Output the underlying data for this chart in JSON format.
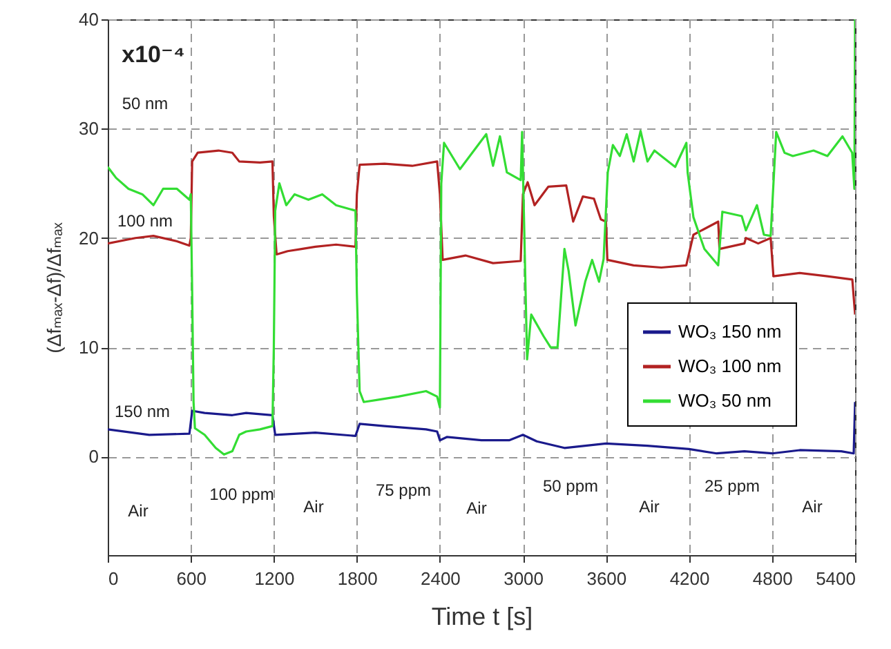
{
  "chart_data": {
    "type": "line",
    "xlabel": "Time t  [s]",
    "ylabel": "(Δfₘₐₓ-Δf)/Δfₘₐₓ",
    "xlim": [
      0,
      5400
    ],
    "xticks": [
      0,
      600,
      1200,
      1800,
      2400,
      3000,
      3600,
      4200,
      4800,
      5400
    ],
    "ylim": [
      -9,
      40
    ],
    "yticks": [
      0,
      10,
      20,
      30,
      40
    ],
    "grid": true,
    "legend": "bottom right",
    "line_style": "solid",
    "series": [
      {
        "name": "WO₃ 150 nm",
        "color": "#1a1a8c",
        "x": [
          0,
          300,
          590,
          610,
          700,
          900,
          1000,
          1190,
          1210,
          1500,
          1790,
          1820,
          2000,
          2300,
          2380,
          2400,
          2450,
          2700,
          2900,
          3000,
          3100,
          3300,
          3600,
          3900,
          4200,
          4400,
          4600,
          4800,
          5000,
          5300,
          5390,
          5400
        ],
        "values": [
          2.5,
          2.0,
          2.1,
          4.2,
          4.0,
          3.8,
          4.0,
          3.8,
          2.0,
          2.2,
          1.9,
          3.0,
          2.8,
          2.5,
          2.3,
          1.5,
          1.8,
          1.5,
          1.5,
          2.0,
          1.4,
          0.8,
          1.2,
          1.0,
          0.7,
          0.3,
          0.5,
          0.3,
          0.6,
          0.5,
          0.3,
          5.0
        ]
      },
      {
        "name": "WO₃ 100 nm",
        "color": "#b22222",
        "x": [
          0,
          200,
          330,
          500,
          590,
          600,
          610,
          650,
          800,
          900,
          950,
          1100,
          1190,
          1200,
          1220,
          1300,
          1400,
          1500,
          1650,
          1790,
          1800,
          1820,
          2000,
          2200,
          2380,
          2400,
          2420,
          2585,
          2784,
          2984,
          3000,
          3034,
          3084,
          3184,
          3313,
          3363,
          3433,
          3513,
          3563,
          3600,
          3610,
          3800,
          4000,
          4180,
          4232,
          4411,
          4420,
          4600,
          4611,
          4700,
          4790,
          4810,
          5000,
          5200,
          5380,
          5400
        ],
        "values": [
          19.5,
          20.0,
          20.2,
          19.7,
          19.3,
          20.0,
          27.0,
          27.8,
          28.0,
          27.8,
          27.0,
          26.9,
          27.0,
          22.0,
          18.5,
          18.8,
          19.0,
          19.2,
          19.4,
          19.2,
          24.0,
          26.7,
          26.8,
          26.6,
          27.0,
          24.0,
          18.0,
          18.4,
          17.7,
          17.9,
          24.0,
          25.1,
          23.0,
          24.7,
          24.8,
          21.5,
          23.8,
          23.6,
          21.7,
          21.5,
          18.0,
          17.5,
          17.3,
          17.5,
          20.3,
          21.5,
          19.0,
          19.5,
          20.0,
          19.5,
          20.0,
          16.5,
          16.8,
          16.5,
          16.2,
          13.0
        ]
      },
      {
        "name": "WO₃ 50 nm",
        "color": "#33dd33",
        "x": [
          0,
          60,
          150,
          250,
          330,
          400,
          500,
          590,
          600,
          610,
          620,
          630,
          700,
          780,
          840,
          900,
          950,
          1000,
          1100,
          1190,
          1200,
          1210,
          1240,
          1290,
          1350,
          1450,
          1550,
          1650,
          1790,
          1800,
          1820,
          1850,
          1950,
          2100,
          2300,
          2380,
          2400,
          2410,
          2430,
          2545,
          2735,
          2784,
          2834,
          2884,
          2984,
          2994,
          3030,
          3060,
          3150,
          3200,
          3250,
          3300,
          3330,
          3380,
          3450,
          3500,
          3550,
          3583,
          3613,
          3650,
          3700,
          3750,
          3800,
          3850,
          3900,
          3950,
          4000,
          4100,
          4181,
          4190,
          4232,
          4311,
          4411,
          4441,
          4581,
          4611,
          4691,
          4741,
          4790,
          4830,
          4890,
          4950,
          5100,
          5200,
          5309,
          5379,
          5395,
          5400
        ],
        "values": [
          26.5,
          25.5,
          24.5,
          24.0,
          23.0,
          24.5,
          24.5,
          23.5,
          24.0,
          15.0,
          5.0,
          2.6,
          2.0,
          0.8,
          0.2,
          0.5,
          2.0,
          2.3,
          2.5,
          2.8,
          10.0,
          22.5,
          25.0,
          23.0,
          24.0,
          23.5,
          24.0,
          23.0,
          22.5,
          15.0,
          6.0,
          5.0,
          5.2,
          5.5,
          6.0,
          5.5,
          4.5,
          25.0,
          28.7,
          26.3,
          29.5,
          26.6,
          29.3,
          26.0,
          25.3,
          29.7,
          8.9,
          13.0,
          11.0,
          10.0,
          10.0,
          19.0,
          17.0,
          12.0,
          16.0,
          18.0,
          16.0,
          18.1,
          26.0,
          28.5,
          27.5,
          29.5,
          27.0,
          29.8,
          27.0,
          28.0,
          27.5,
          26.5,
          28.7,
          26.0,
          21.9,
          19.0,
          17.5,
          22.4,
          22.0,
          20.7,
          23.0,
          20.3,
          20.2,
          29.7,
          27.8,
          27.5,
          28.0,
          27.5,
          29.3,
          27.8,
          24.5,
          40.0
        ]
      }
    ],
    "annotations": [
      "x10⁻⁴",
      "50 nm",
      "100 nm",
      "150 nm",
      "Air",
      "100 ppm",
      "Air",
      "75 ppm",
      "Air",
      "50 ppm",
      "Air",
      "25 ppm",
      "Air"
    ]
  }
}
